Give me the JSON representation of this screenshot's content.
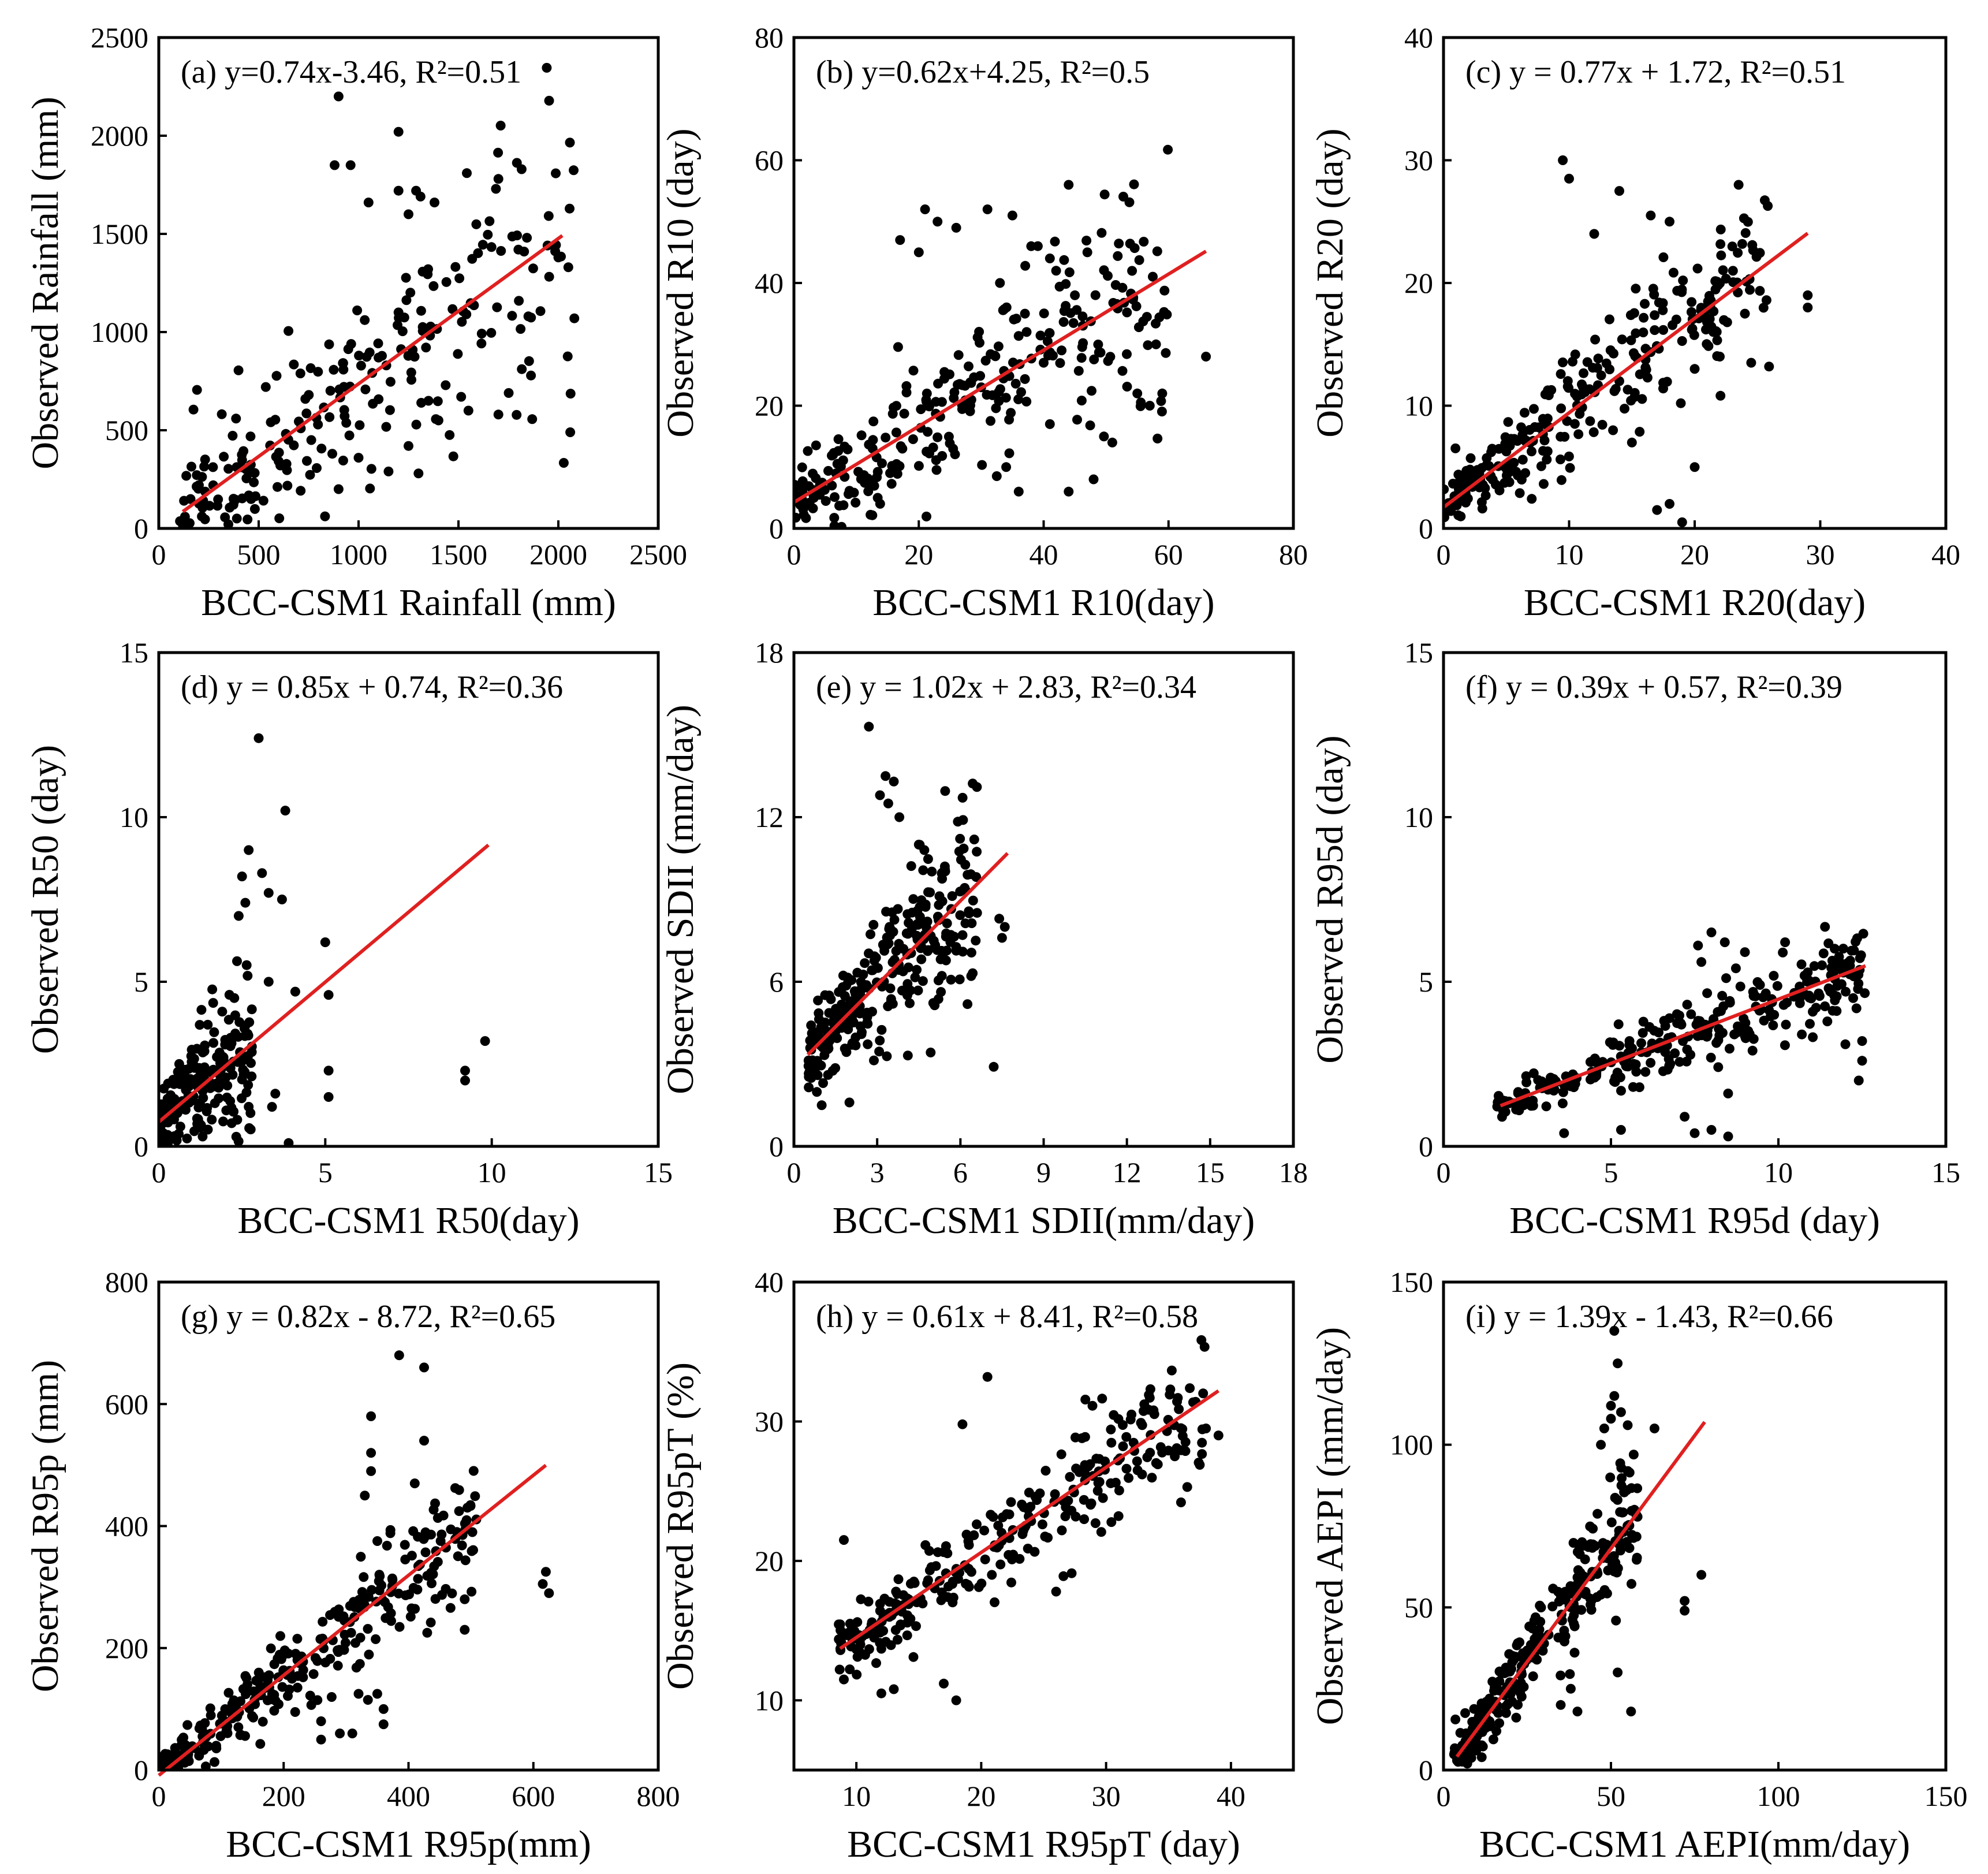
{
  "figure": {
    "point_color": "#000000",
    "fit_line_color": "#e02020"
  },
  "chart_data": [
    {
      "panel": "a",
      "type": "scatter",
      "annotation": "(a)  y=0.74x-3.46, R²=0.51",
      "xlabel": "BCC-CSM1 Rainfall (mm)",
      "ylabel": "Observed Rainfall (mm)",
      "xlim": [
        0,
        2500
      ],
      "ylim": [
        0,
        2500
      ],
      "xticks": [
        0,
        500,
        1000,
        1500,
        2000,
        2500
      ],
      "yticks": [
        0,
        500,
        1000,
        1500,
        2000,
        2500
      ],
      "xtick_labels": [
        "0",
        "500",
        "1000",
        "1500",
        "2000",
        "2500"
      ],
      "ytick_labels": [
        "0",
        "500",
        "1000",
        "1500",
        "2000",
        "2500"
      ],
      "fit": {
        "slope": 0.74,
        "intercept": -3.46,
        "x_range": [
          120,
          2020
        ]
      },
      "scatter_model": {
        "n": 230,
        "x_range": [
          100,
          2080
        ],
        "noise": 420,
        "seed": 11
      },
      "points": [
        [
          900,
          2200
        ],
        [
          1200,
          2020
        ],
        [
          880,
          1850
        ],
        [
          960,
          1850
        ],
        [
          1200,
          1720
        ],
        [
          1310,
          1690
        ],
        [
          1700,
          1780
        ],
        [
          1380,
          1660
        ],
        [
          1050,
          1660
        ],
        [
          1250,
          1600
        ],
        [
          1800,
          1420
        ],
        [
          2000,
          1380
        ],
        [
          2050,
          1330
        ],
        [
          2080,
          1070
        ],
        [
          1850,
          1080
        ],
        [
          1200,
          1100
        ],
        [
          1100,
          870
        ],
        [
          1350,
          650
        ],
        [
          1400,
          550
        ],
        [
          1550,
          600
        ],
        [
          1700,
          580
        ],
        [
          1300,
          280
        ],
        [
          900,
          200
        ],
        [
          1150,
          290
        ],
        [
          1000,
          360
        ],
        [
          1250,
          420
        ]
      ]
    },
    {
      "panel": "b",
      "type": "scatter",
      "annotation": "(b)  y=0.62x+4.25, R²=0.5",
      "xlabel": "BCC-CSM1 R10(day)",
      "ylabel": "Observed R10 (day)",
      "xlim": [
        0,
        80
      ],
      "ylim": [
        0,
        80
      ],
      "xticks": [
        0,
        20,
        40,
        60,
        80
      ],
      "yticks": [
        0,
        20,
        40,
        60,
        80
      ],
      "xtick_labels": [
        "0",
        "20",
        "40",
        "60",
        "80"
      ],
      "ytick_labels": [
        "0",
        "20",
        "40",
        "60",
        "80"
      ],
      "fit": {
        "slope": 0.62,
        "intercept": 4.25,
        "x_range": [
          0,
          66
        ]
      },
      "scatter_model": {
        "n": 280,
        "x_range": [
          0,
          60
        ],
        "noise": 9,
        "seed": 23
      },
      "points": [
        [
          44,
          56
        ],
        [
          21,
          52
        ],
        [
          31,
          52
        ],
        [
          35,
          51
        ],
        [
          23,
          50
        ],
        [
          26,
          49
        ],
        [
          17,
          47
        ],
        [
          20,
          45
        ],
        [
          38,
          46
        ],
        [
          47,
          45
        ],
        [
          41,
          44
        ],
        [
          42,
          42
        ],
        [
          33,
          40
        ],
        [
          45,
          38
        ],
        [
          37,
          35
        ],
        [
          58,
          30
        ],
        [
          66,
          28
        ],
        [
          59,
          22
        ],
        [
          44,
          6
        ],
        [
          48,
          8
        ],
        [
          36,
          6
        ],
        [
          51,
          14
        ],
        [
          55,
          22
        ],
        [
          41,
          17
        ],
        [
          30,
          23
        ],
        [
          57,
          20
        ],
        [
          34,
          10
        ],
        [
          40,
          27
        ]
      ]
    },
    {
      "panel": "c",
      "type": "scatter",
      "annotation": "(c)  y = 0.77x + 1.72, R²=0.51",
      "xlabel": "BCC-CSM1 R20(day)",
      "ylabel": "Observed R20 (day)",
      "xlim": [
        0,
        40
      ],
      "ylim": [
        0,
        40
      ],
      "xticks": [
        0,
        10,
        20,
        30,
        40
      ],
      "yticks": [
        0,
        10,
        20,
        30,
        40
      ],
      "xtick_labels": [
        "0",
        "10",
        "20",
        "30",
        "40"
      ],
      "ytick_labels": [
        "0",
        "10",
        "20",
        "30",
        "40"
      ],
      "fit": {
        "slope": 0.77,
        "intercept": 1.72,
        "x_range": [
          0,
          29
        ]
      },
      "scatter_model": {
        "n": 270,
        "x_range": [
          0,
          26
        ],
        "noise": 3.6,
        "seed": 37
      },
      "points": [
        [
          9.5,
          30
        ],
        [
          10,
          28.5
        ],
        [
          14,
          27.5
        ],
        [
          23.5,
          28
        ],
        [
          16.5,
          25.5
        ],
        [
          18,
          25
        ],
        [
          12,
          24
        ],
        [
          29,
          19
        ],
        [
          29,
          18
        ],
        [
          24,
          17.5
        ],
        [
          24.5,
          13.5
        ],
        [
          19,
          0.5
        ],
        [
          18,
          2
        ],
        [
          17,
          1.5
        ],
        [
          20,
          5
        ],
        [
          22,
          14
        ],
        [
          20,
          13
        ],
        [
          14,
          12
        ],
        [
          13.5,
          8
        ],
        [
          15,
          7
        ]
      ]
    },
    {
      "panel": "d",
      "type": "scatter",
      "annotation": "(d) y = 0.85x + 0.74, R²=0.36",
      "xlabel": "BCC-CSM1 R50(day)",
      "ylabel": "Observed R50 (day)",
      "xlim": [
        0,
        15
      ],
      "ylim": [
        0,
        15
      ],
      "xticks": [
        0,
        5,
        10,
        15
      ],
      "yticks": [
        0,
        5,
        10,
        15
      ],
      "xtick_labels": [
        "0",
        "5",
        "10",
        "15"
      ],
      "ytick_labels": [
        "0",
        "5",
        "10",
        "15"
      ],
      "fit": {
        "slope": 0.85,
        "intercept": 0.74,
        "x_range": [
          0,
          9.9
        ]
      },
      "scatter_model": {
        "n": 200,
        "x_range": [
          0,
          2.8
        ],
        "noise": 1.4,
        "seed": 41
      },
      "points": [
        [
          3,
          12.4
        ],
        [
          3.8,
          10.2
        ],
        [
          2.7,
          9
        ],
        [
          2.5,
          8.2
        ],
        [
          3.1,
          8.3
        ],
        [
          3.3,
          7.7
        ],
        [
          2.6,
          7.4
        ],
        [
          3.7,
          7.5
        ],
        [
          2.4,
          7
        ],
        [
          5,
          6.2
        ],
        [
          5.1,
          4.6
        ],
        [
          9.2,
          2.3
        ],
        [
          9.2,
          2
        ],
        [
          9.8,
          3.2
        ],
        [
          3.5,
          1.6
        ],
        [
          3.4,
          1.2
        ],
        [
          5.1,
          1.5
        ],
        [
          5.1,
          2.3
        ],
        [
          3.9,
          0.1
        ],
        [
          3.3,
          5
        ],
        [
          4.1,
          4.7
        ]
      ]
    },
    {
      "panel": "e",
      "type": "scatter",
      "annotation": "(e) y = 1.02x + 2.83, R²=0.34",
      "xlabel": "BCC-CSM1 SDII(mm/day)",
      "ylabel": "Observed SDII (mm/day)",
      "xlim": [
        0,
        18
      ],
      "ylim": [
        0,
        18
      ],
      "xticks": [
        0,
        3,
        6,
        9,
        12,
        15,
        18
      ],
      "yticks": [
        0,
        6,
        12,
        18
      ],
      "xtick_labels": [
        "0",
        "3",
        "6",
        "9",
        "12",
        "15",
        "18"
      ],
      "ytick_labels": [
        "0",
        "6",
        "12",
        "18"
      ],
      "fit": {
        "slope": 1.02,
        "intercept": 2.83,
        "x_range": [
          0.5,
          7.7
        ]
      },
      "scatter_model": {
        "n": 300,
        "x_range": [
          0.5,
          6.6
        ],
        "noise": 1.9,
        "seed": 53
      },
      "points": [
        [
          2.7,
          15.3
        ],
        [
          3.3,
          13.5
        ],
        [
          3.6,
          13.3
        ],
        [
          3.1,
          12.8
        ],
        [
          3.4,
          12.5
        ],
        [
          3.8,
          12
        ],
        [
          4.5,
          11
        ],
        [
          4.7,
          10.8
        ],
        [
          7.4,
          8.3
        ],
        [
          7.6,
          8
        ],
        [
          7.5,
          7.6
        ],
        [
          7.2,
          2.9
        ],
        [
          2,
          1.6
        ],
        [
          1,
          1.5
        ]
      ]
    },
    {
      "panel": "f",
      "type": "scatter",
      "annotation": "(f) y = 0.39x + 0.57, R²=0.39",
      "xlabel": "BCC-CSM1 R95d (day)",
      "ylabel": "Observed R95d (day)",
      "xlim": [
        0,
        15
      ],
      "ylim": [
        0,
        15
      ],
      "xticks": [
        0,
        5,
        10,
        15
      ],
      "yticks": [
        0,
        5,
        10,
        15
      ],
      "xtick_labels": [
        "0",
        "5",
        "10",
        "15"
      ],
      "ytick_labels": [
        "0",
        "5",
        "10",
        "15"
      ],
      "fit": {
        "slope": 0.39,
        "intercept": 0.57,
        "x_range": [
          1.7,
          12.6
        ]
      },
      "scatter_model": {
        "n": 290,
        "x_range": [
          1.6,
          12.6
        ],
        "noise": 0.75,
        "seed": 61
      },
      "points": [
        [
          8,
          6.5
        ],
        [
          7.6,
          6.1
        ],
        [
          8.4,
          6.2
        ],
        [
          10.2,
          6.2
        ],
        [
          9,
          5.9
        ],
        [
          7.7,
          5.6
        ],
        [
          11.3,
          5.5
        ],
        [
          12.5,
          3.2
        ],
        [
          12.4,
          2
        ],
        [
          12.5,
          2.6
        ],
        [
          12,
          3.1
        ],
        [
          7.5,
          0.4
        ],
        [
          8,
          0.5
        ],
        [
          8.5,
          0.3
        ],
        [
          5.3,
          0.5
        ],
        [
          7.2,
          0.9
        ],
        [
          3.6,
          0.4
        ],
        [
          10.7,
          3.4
        ],
        [
          11.5,
          4.8
        ]
      ]
    },
    {
      "panel": "g",
      "type": "scatter",
      "annotation": "(g) y = 0.82x - 8.72, R²=0.65",
      "xlabel": "BCC-CSM1 R95p(mm)",
      "ylabel": "Observed R95p (mm)",
      "xlim": [
        0,
        800
      ],
      "ylim": [
        0,
        800
      ],
      "xticks": [
        0,
        200,
        400,
        600,
        800
      ],
      "yticks": [
        0,
        200,
        400,
        600,
        800
      ],
      "xtick_labels": [
        "0",
        "200",
        "400",
        "600",
        "800"
      ],
      "ytick_labels": [
        "0",
        "200",
        "400",
        "600",
        "800"
      ],
      "fit": {
        "slope": 0.82,
        "intercept": -8.72,
        "x_range": [
          0,
          620
        ]
      },
      "scatter_model": {
        "n": 300,
        "x_range": [
          0,
          510
        ],
        "noise": 58,
        "seed": 71
      },
      "points": [
        [
          385,
          680
        ],
        [
          425,
          660
        ],
        [
          340,
          580
        ],
        [
          425,
          540
        ],
        [
          340,
          520
        ],
        [
          340,
          490
        ],
        [
          410,
          470
        ],
        [
          620,
          325
        ],
        [
          625,
          290
        ],
        [
          615,
          305
        ],
        [
          490,
          230
        ],
        [
          490,
          280
        ],
        [
          430,
          225
        ],
        [
          360,
          100
        ],
        [
          320,
          125
        ],
        [
          335,
          115
        ],
        [
          350,
          125
        ],
        [
          360,
          75
        ],
        [
          260,
          50
        ],
        [
          290,
          60
        ],
        [
          310,
          60
        ],
        [
          260,
          80
        ],
        [
          330,
          450
        ]
      ]
    },
    {
      "panel": "h",
      "type": "scatter",
      "annotation": "(h) y = 0.61x + 8.41, R²=0.58",
      "xlabel": "BCC-CSM1 R95pT (day)",
      "ylabel": "Observed R95pT (%)",
      "xlim": [
        5,
        45
      ],
      "ylim": [
        5,
        40
      ],
      "xticks": [
        10,
        20,
        30,
        40
      ],
      "yticks": [
        10,
        20,
        30,
        40
      ],
      "xtick_labels": [
        "10",
        "20",
        "30",
        "40"
      ],
      "ytick_labels": [
        "10",
        "20",
        "30",
        "40"
      ],
      "fit": {
        "slope": 0.61,
        "intercept": 8.41,
        "x_range": [
          8.7,
          39
        ]
      },
      "scatter_model": {
        "n": 290,
        "x_range": [
          8.5,
          38
        ],
        "noise": 2.6,
        "seed": 83
      },
      "points": [
        [
          20.5,
          33.2
        ],
        [
          18.5,
          29.8
        ],
        [
          33.5,
          31.7
        ],
        [
          39,
          29
        ],
        [
          38,
          29.5
        ],
        [
          36,
          24.2
        ],
        [
          36.5,
          25.3
        ],
        [
          35.5,
          27.5
        ],
        [
          26,
          17.8
        ],
        [
          18,
          10
        ],
        [
          9,
          11.5
        ],
        [
          9,
          21.5
        ],
        [
          12,
          10.5
        ],
        [
          17,
          11.2
        ],
        [
          13,
          10.8
        ],
        [
          9.5,
          15.5
        ]
      ]
    },
    {
      "panel": "i",
      "type": "scatter",
      "annotation": "(i) y = 1.39x - 1.43, R²=0.66",
      "xlabel": "BCC-CSM1 AEPI(mm/day)",
      "ylabel": "Observed AEPI (mm/day)",
      "xlim": [
        0,
        150
      ],
      "ylim": [
        0,
        150
      ],
      "xticks": [
        0,
        50,
        100,
        150
      ],
      "yticks": [
        0,
        50,
        100,
        150
      ],
      "xtick_labels": [
        "0",
        "50",
        "100",
        "150"
      ],
      "ytick_labels": [
        "0",
        "50",
        "100",
        "150"
      ],
      "fit": {
        "slope": 1.39,
        "intercept": -1.43,
        "x_range": [
          4,
          78
        ]
      },
      "scatter_model": {
        "n": 290,
        "x_range": [
          3,
          58
        ],
        "noise": 11,
        "seed": 97
      },
      "points": [
        [
          51,
          135
        ],
        [
          52,
          125
        ],
        [
          51,
          115
        ],
        [
          53,
          110
        ],
        [
          50,
          112
        ],
        [
          48,
          105
        ],
        [
          50,
          108
        ],
        [
          47,
          100
        ],
        [
          55,
          106
        ],
        [
          63,
          105
        ],
        [
          57,
          80
        ],
        [
          72,
          52
        ],
        [
          72,
          49
        ],
        [
          77,
          60
        ],
        [
          56,
          18
        ],
        [
          52,
          30
        ],
        [
          40,
          18
        ],
        [
          35,
          20
        ],
        [
          38,
          25
        ]
      ]
    }
  ]
}
